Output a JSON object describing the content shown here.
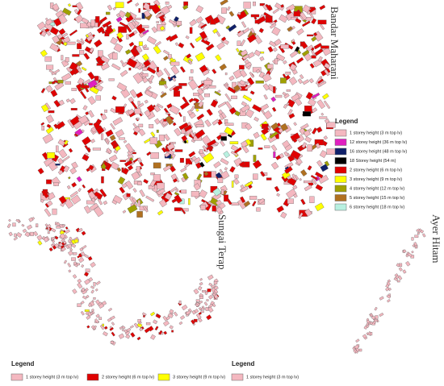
{
  "maps": [
    {
      "name": "Bandar Maharani",
      "legend": {
        "title": "Legend",
        "items": [
          {
            "label": "1 storey height (3 m top lv)",
            "color": "#f4b8c0"
          },
          {
            "label": "12 storey height (36 m top lv)",
            "color": "#e020c0"
          },
          {
            "label": "16 storey height (48 m top lv)",
            "color": "#10206a"
          },
          {
            "label": "18 Storey height (54 m)",
            "color": "#000000"
          },
          {
            "label": "2 storey height (6 m top lv)",
            "color": "#e00000"
          },
          {
            "label": "3 storey height (9 m top lv)",
            "color": "#ffff00"
          },
          {
            "label": "4 storey height (12 m top lv)",
            "color": "#a0a000"
          },
          {
            "label": "5 storey height (15 m top lv)",
            "color": "#b07020"
          },
          {
            "label": "6 storey height (18 m top lv)",
            "color": "#b8f0e0"
          }
        ]
      }
    },
    {
      "name": "Sungai Terap",
      "legend": {
        "title": "Legend",
        "items": [
          {
            "label": "1 storey height (3 m top lv)",
            "color": "#f4b8c0"
          },
          {
            "label": "2 storey height (6 m top lv)",
            "color": "#e00000"
          },
          {
            "label": "3 storey height (9 m top lv)",
            "color": "#ffff00"
          }
        ]
      }
    },
    {
      "name": "Ayer Hitam",
      "legend": {
        "title": "Legend",
        "items": [
          {
            "label": "1 storey height (3 m top lv)",
            "color": "#f4b8c0"
          }
        ]
      }
    }
  ]
}
